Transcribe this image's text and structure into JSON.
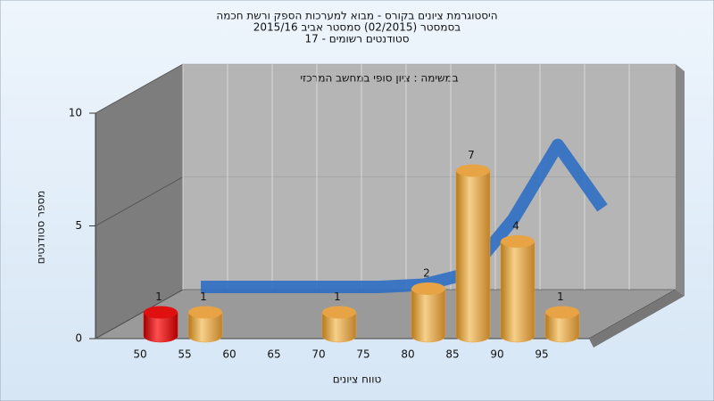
{
  "chart_data": {
    "type": "bar",
    "title": "היסטוגרמת ציונים בקורס - מבוא למערכות הספק ורשת חכמה",
    "subtitle_lines": [
      "בסמסטר (02/2015) סמסטר אביב 2015/16",
      "סטודנטים רשומים - 17"
    ],
    "annotation": "במשימה : ציון סופי במחשב המרכזי",
    "x_label": "טווח ציונים",
    "y_label": "מספר סטודנטים",
    "categories": [
      "50",
      "55",
      "60",
      "65",
      "70",
      "75",
      "80",
      "85",
      "90",
      "95"
    ],
    "values": [
      1,
      1,
      0,
      0,
      1,
      0,
      2,
      7,
      4,
      1
    ],
    "colors": [
      "#e01010",
      "#e8a444",
      "#e8a444",
      "#e8a444",
      "#e8a444",
      "#e8a444",
      "#e8a444",
      "#e8a444",
      "#e8a444",
      "#e8a444"
    ],
    "curve": {
      "color": "#2f6fc4",
      "values": [
        0,
        0,
        0,
        0,
        0,
        0.1,
        0.6,
        3,
        6.3,
        3.5
      ]
    },
    "ylim": [
      0,
      10
    ],
    "yticks": [
      0,
      5,
      10
    ],
    "grid": true
  }
}
